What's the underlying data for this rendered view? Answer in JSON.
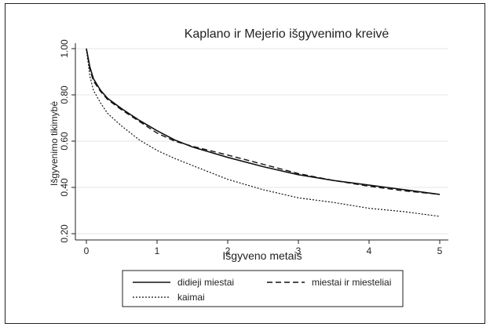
{
  "chart_data": {
    "type": "line",
    "title": "Kaplano ir Mejerio išgyvenimo kreivė",
    "xlabel": "Išgyveno metais",
    "ylabel": "Išgyvenimo tikimybė",
    "xlim": [
      0,
      5
    ],
    "ylim": [
      0.2,
      1.0
    ],
    "x_ticks": [
      "0",
      "1",
      "2",
      "3",
      "4",
      "5"
    ],
    "y_ticks": [
      "0.20",
      "0.40",
      "0.60",
      "0.80",
      "1.00"
    ],
    "grid": "horizontal",
    "legend_position": "bottom",
    "series": [
      {
        "name": "didieji miestai",
        "style": "solid",
        "x": [
          0,
          0.05,
          0.1,
          0.2,
          0.3,
          0.5,
          0.75,
          1.0,
          1.25,
          1.5,
          2.0,
          2.5,
          3.0,
          3.5,
          4.0,
          4.5,
          5.0
        ],
        "y": [
          1.0,
          0.92,
          0.87,
          0.82,
          0.785,
          0.74,
          0.69,
          0.645,
          0.605,
          0.575,
          0.53,
          0.49,
          0.455,
          0.43,
          0.41,
          0.39,
          0.37
        ]
      },
      {
        "name": "miestai ir miesteliai",
        "style": "dashed",
        "x": [
          0,
          0.05,
          0.1,
          0.2,
          0.3,
          0.5,
          0.75,
          1.0,
          1.25,
          1.5,
          2.0,
          2.5,
          3.0,
          3.5,
          4.0,
          4.5,
          5.0
        ],
        "y": [
          1.0,
          0.91,
          0.86,
          0.815,
          0.78,
          0.735,
          0.685,
          0.635,
          0.6,
          0.578,
          0.54,
          0.5,
          0.46,
          0.43,
          0.405,
          0.385,
          0.37
        ]
      },
      {
        "name": "kaimai",
        "style": "dotted",
        "x": [
          0,
          0.05,
          0.1,
          0.2,
          0.3,
          0.5,
          0.75,
          1.0,
          1.25,
          1.5,
          2.0,
          2.5,
          3.0,
          3.5,
          4.0,
          4.5,
          5.0
        ],
        "y": [
          1.0,
          0.88,
          0.82,
          0.765,
          0.72,
          0.665,
          0.605,
          0.56,
          0.525,
          0.495,
          0.435,
          0.39,
          0.355,
          0.335,
          0.31,
          0.295,
          0.275
        ]
      }
    ]
  }
}
